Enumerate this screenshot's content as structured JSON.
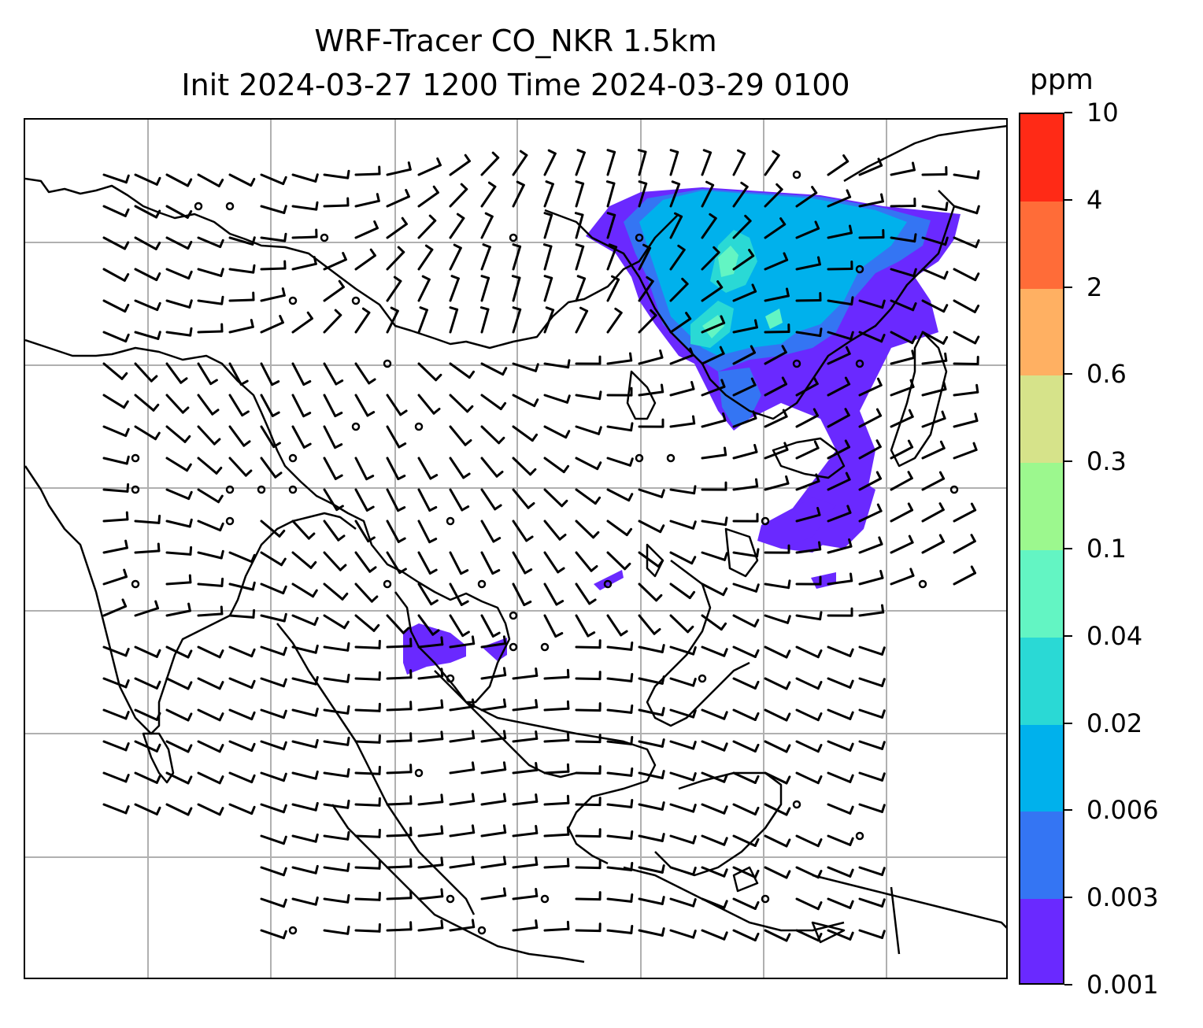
{
  "title": {
    "line1": "WRF-Tracer CO_NKR 1.5km",
    "line2": "Init 2024-03-27 1200 Time 2024-03-29 0100"
  },
  "colorbar": {
    "unit_label": "ppm",
    "tick_labels": [
      "10",
      "4",
      "2",
      "0.6",
      "0.3",
      "0.1",
      "0.04",
      "0.02",
      "0.006",
      "0.003",
      "0.001"
    ],
    "segment_colors": [
      "#ff2a16",
      "#ff6c38",
      "#ffb062",
      "#d6e38a",
      "#9cf88e",
      "#63f5c3",
      "#2ad9d5",
      "#00b1ec",
      "#3475f3",
      "#6a29ff"
    ]
  },
  "map": {
    "gridlines": true,
    "wind_vectors": true,
    "tracer_shading": true
  }
}
